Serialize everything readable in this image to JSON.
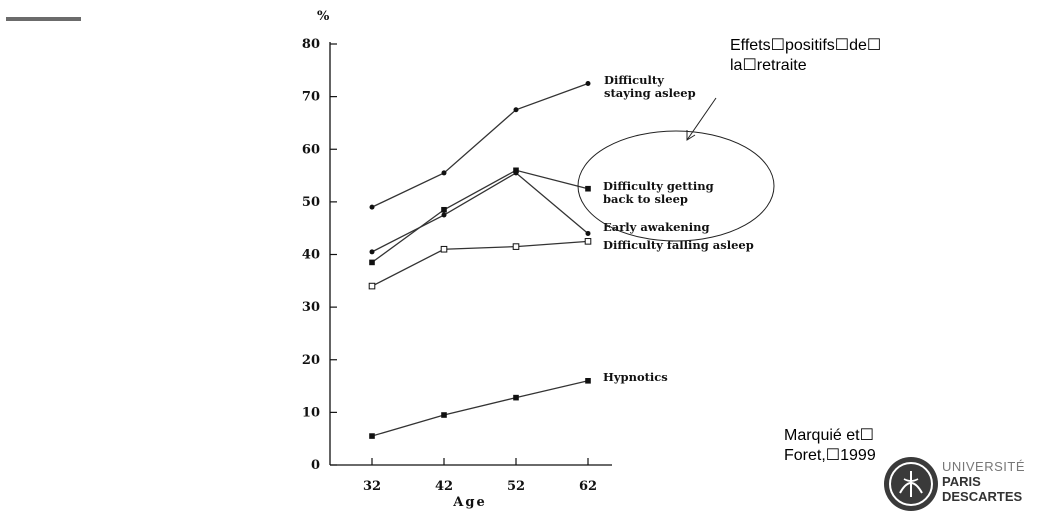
{
  "chart_data": {
    "type": "line",
    "ylabel": "%",
    "xlabel": "Age",
    "x": [
      32,
      42,
      52,
      62
    ],
    "ylim": [
      0,
      80
    ],
    "yticks": [
      0,
      10,
      20,
      30,
      40,
      50,
      60,
      70,
      80
    ],
    "series": [
      {
        "name": "Difficulty staying asleep",
        "label_lines": [
          "Difficulty",
          "staying asleep"
        ],
        "marker": "dot",
        "values": [
          49,
          55.5,
          67.5,
          72.5
        ]
      },
      {
        "name": "Difficulty getting back to sleep",
        "label_lines": [
          "Difficulty getting",
          "back to sleep"
        ],
        "marker": "square",
        "values": [
          38.5,
          48.5,
          56,
          52.5
        ]
      },
      {
        "name": "Early awakening",
        "label_lines": [
          "Early awakening"
        ],
        "marker": "dot",
        "values": [
          40.5,
          47.5,
          55.5,
          44
        ]
      },
      {
        "name": "Difficulty falling asleep",
        "label_lines": [
          "Difficulty falling asleep"
        ],
        "marker": "open-square",
        "values": [
          34,
          41,
          41.5,
          42.5
        ]
      },
      {
        "name": "Hypnotics",
        "label_lines": [
          "Hypnotics"
        ],
        "marker": "square",
        "values": [
          5.5,
          9.5,
          12.8,
          16
        ]
      }
    ]
  },
  "annotations": {
    "effects_lines": [
      "Effets☐positifs☐de☐",
      "la☐retraite"
    ],
    "citation_lines": [
      "Marquié et☐",
      "Foret,☐1999"
    ]
  },
  "logo": {
    "line1": "UNIVERSITÉ",
    "line2": "PARIS",
    "line3": "DESCARTES",
    "color": "#333333"
  }
}
